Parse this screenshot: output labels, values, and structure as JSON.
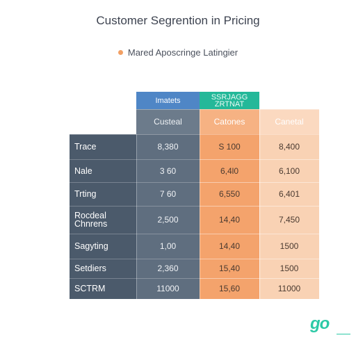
{
  "chart_data": {
    "type": "table",
    "title": "Customer Segrention in Pricing",
    "legend": [
      {
        "label": "Mared Aposcringe Latingier",
        "color": "#f2a064"
      }
    ],
    "header_row1": [
      "Imatets",
      "SSRJAGG\nZRTNAT",
      ""
    ],
    "header_row2": [
      "Custeal",
      "Catones",
      "Canetal"
    ],
    "rows": [
      {
        "label": "Trace",
        "values": [
          "8,380",
          "S 100",
          "8,400"
        ]
      },
      {
        "label": "Nale",
        "values": [
          "3 60",
          "6,4l0",
          "6,100"
        ]
      },
      {
        "label": "Trting",
        "values": [
          "7 60",
          "6,550",
          "6,401"
        ]
      },
      {
        "label": "Rocdeal\nChnrens",
        "values": [
          "2,500",
          "14,40",
          "7,450"
        ]
      },
      {
        "label": "Sagyting",
        "values": [
          "1,00",
          "14,40",
          "1500"
        ]
      },
      {
        "label": "Setdiers",
        "values": [
          "2,360",
          "15,40",
          "1500"
        ]
      },
      {
        "label": "SCTRM",
        "values": [
          "11000",
          "15,60",
          "11000"
        ]
      }
    ],
    "colors": {
      "label_col": "#4b5a6b",
      "col1": "#5f6e7f",
      "col1_header": "#4f86c6",
      "col2": "#f4a36c",
      "col2_header": "#24b899",
      "col3": "#f9d2b4",
      "col3_header": "#fbd9c0"
    }
  },
  "brand": {
    "logo_text": "go"
  }
}
